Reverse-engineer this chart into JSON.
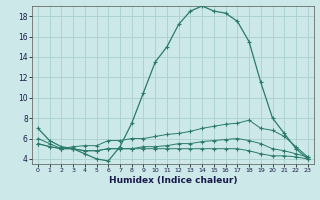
{
  "xlabel": "Humidex (Indice chaleur)",
  "bg_color": "#cce8e8",
  "grid_color": "#aad0d0",
  "line_color": "#2a7a6a",
  "xlim": [
    -0.5,
    23.5
  ],
  "ylim": [
    3.5,
    19.0
  ],
  "yticks": [
    4,
    6,
    8,
    10,
    12,
    14,
    16,
    18
  ],
  "xtick_labels": [
    "0",
    "1",
    "2",
    "3",
    "4",
    "5",
    "6",
    "7",
    "8",
    "9",
    "10",
    "11",
    "12",
    "13",
    "14",
    "15",
    "16",
    "17",
    "18",
    "19",
    "20",
    "21",
    "22",
    "23"
  ],
  "series1_x": [
    0,
    1,
    2,
    3,
    4,
    5,
    6,
    7,
    8,
    9,
    10,
    11,
    12,
    13,
    14,
    15,
    16,
    17,
    18,
    19,
    20,
    21,
    22,
    23
  ],
  "series1_y": [
    7.0,
    5.8,
    5.2,
    5.0,
    4.5,
    4.0,
    3.8,
    5.2,
    7.5,
    10.5,
    13.5,
    15.0,
    17.2,
    18.5,
    19.0,
    18.5,
    18.3,
    17.5,
    15.5,
    11.5,
    8.0,
    6.5,
    5.0,
    4.0
  ],
  "series2_x": [
    0,
    1,
    2,
    3,
    4,
    5,
    6,
    7,
    8,
    9,
    10,
    11,
    12,
    13,
    14,
    15,
    16,
    17,
    18,
    19,
    20,
    21,
    22,
    23
  ],
  "series2_y": [
    6.0,
    5.5,
    5.0,
    5.2,
    5.3,
    5.3,
    5.8,
    5.8,
    6.0,
    6.0,
    6.2,
    6.4,
    6.5,
    6.7,
    7.0,
    7.2,
    7.4,
    7.5,
    7.8,
    7.0,
    6.8,
    6.2,
    5.2,
    4.2
  ],
  "series3_x": [
    0,
    1,
    2,
    3,
    4,
    5,
    6,
    7,
    8,
    9,
    10,
    11,
    12,
    13,
    14,
    15,
    16,
    17,
    18,
    19,
    20,
    21,
    22,
    23
  ],
  "series3_y": [
    5.5,
    5.2,
    5.0,
    5.0,
    4.8,
    4.8,
    5.0,
    5.0,
    5.0,
    5.2,
    5.2,
    5.3,
    5.5,
    5.5,
    5.7,
    5.8,
    5.9,
    6.0,
    5.8,
    5.5,
    5.0,
    4.8,
    4.5,
    4.2
  ],
  "series4_x": [
    0,
    1,
    2,
    3,
    4,
    5,
    6,
    7,
    8,
    9,
    10,
    11,
    12,
    13,
    14,
    15,
    16,
    17,
    18,
    19,
    20,
    21,
    22,
    23
  ],
  "series4_y": [
    5.5,
    5.2,
    5.0,
    5.0,
    4.8,
    4.8,
    5.0,
    5.0,
    5.0,
    5.0,
    5.0,
    5.0,
    5.0,
    5.0,
    5.0,
    5.0,
    5.0,
    5.0,
    4.8,
    4.5,
    4.3,
    4.3,
    4.2,
    4.0
  ]
}
